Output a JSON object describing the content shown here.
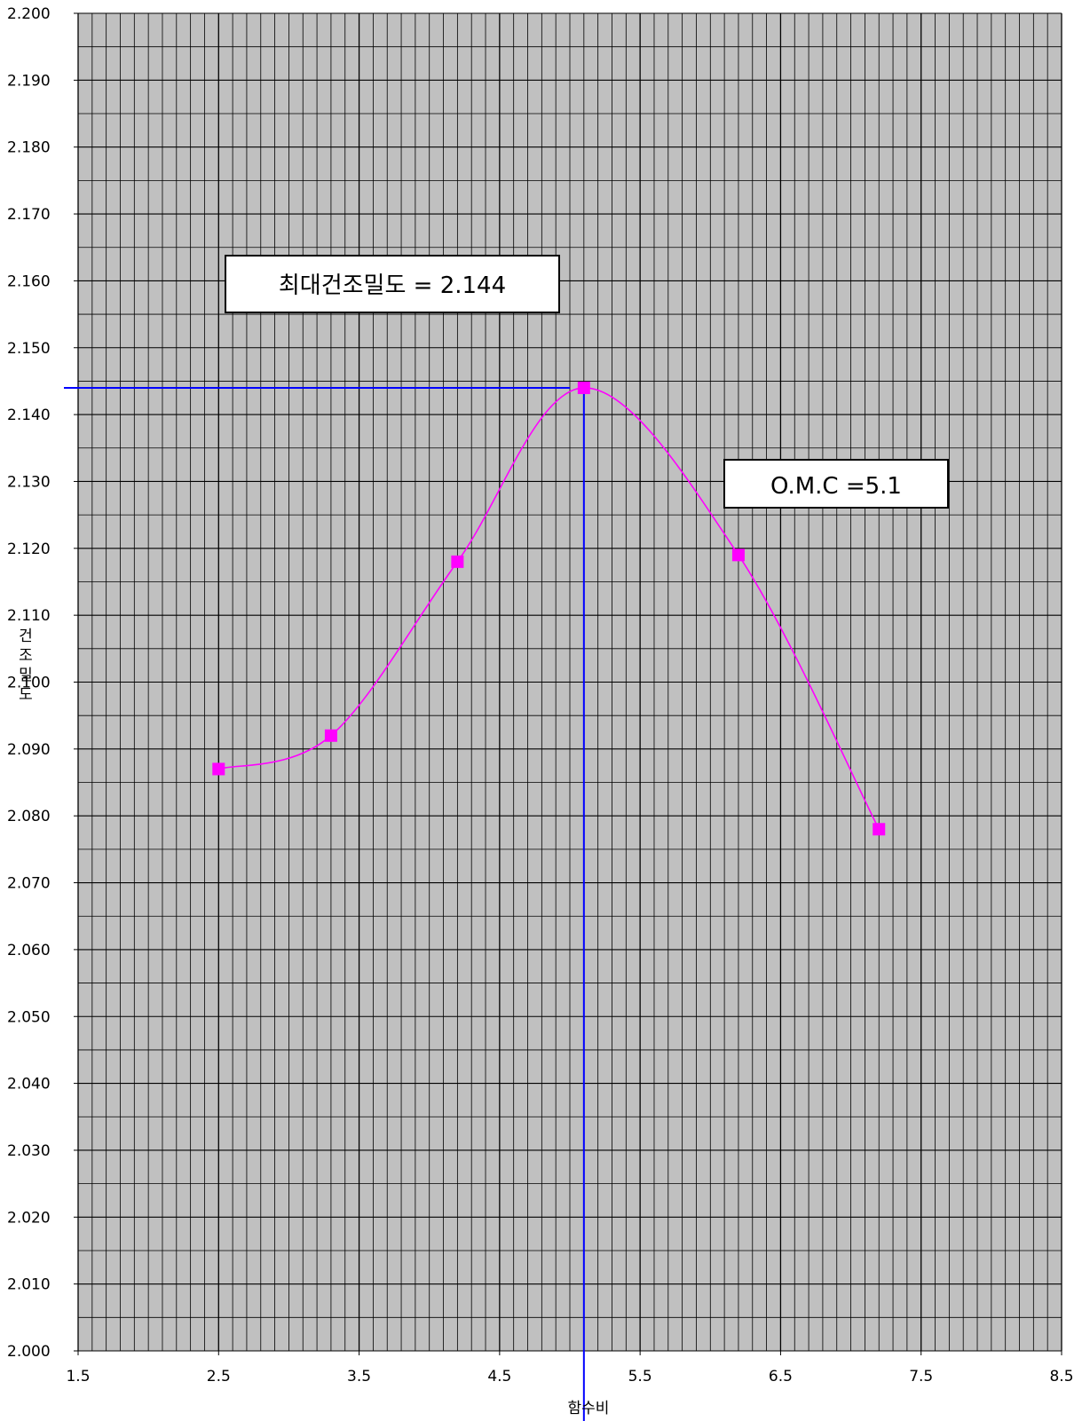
{
  "chart_data": {
    "type": "scatter",
    "xlabel": "함수비",
    "ylabel": "건조밀도",
    "xlim": [
      1.5,
      8.5
    ],
    "ylim": [
      2.0,
      2.2
    ],
    "x_ticks": [
      "1.5",
      "2.5",
      "3.5",
      "4.5",
      "5.5",
      "6.5",
      "7.5",
      "8.5"
    ],
    "y_ticks": [
      "2.000",
      "2.010",
      "2.020",
      "2.030",
      "2.040",
      "2.050",
      "2.060",
      "2.070",
      "2.080",
      "2.090",
      "2.100",
      "2.110",
      "2.120",
      "2.130",
      "2.140",
      "2.150",
      "2.160",
      "2.170",
      "2.180",
      "2.190",
      "2.200"
    ],
    "grid": true,
    "series": [
      {
        "x": [
          2.5,
          3.3,
          4.2,
          5.1,
          6.2,
          7.2
        ],
        "y": [
          2.087,
          2.092,
          2.118,
          2.144,
          2.119,
          2.078
        ],
        "marker": "square",
        "line": "smooth"
      }
    ],
    "reference_lines": {
      "x": 5.1,
      "y": 2.144
    },
    "annotations": [
      {
        "text": "최대건조밀도 = 2.144"
      },
      {
        "text": "O.M.C =5.1"
      }
    ],
    "colors": {
      "plot_background": "#c0c0c0",
      "grid": "#000000",
      "series": "#ff00ff",
      "reference": "#0000ff"
    }
  }
}
